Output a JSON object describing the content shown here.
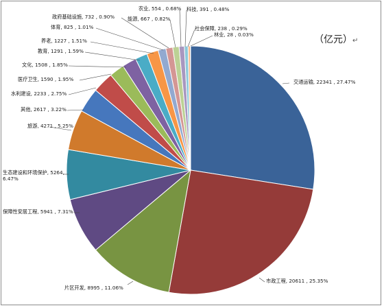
{
  "unit_label": "（亿元）",
  "unit_mark": "↵",
  "chart_data": {
    "type": "pie",
    "title": "",
    "unit": "亿元",
    "legend": "none",
    "slices": [
      {
        "name": "交通运输",
        "value": 22341,
        "percent": "27.47%",
        "color": "#3a6398",
        "label": "交通运输, 22341 , 27.47%"
      },
      {
        "name": "市政工程",
        "value": 20611,
        "percent": "25.35%",
        "color": "#953b39",
        "label": "市政工程, 20611 , 25.35%"
      },
      {
        "name": "片区开发",
        "value": 8995,
        "percent": "11.06%",
        "color": "#789442",
        "label": "片区开发, 8995 , 11.06%"
      },
      {
        "name": "保障性安居工程",
        "value": 5941,
        "percent": "7.31%",
        "color": "#5f4a83",
        "label": "保障性安居工程, 5941 , 7.31%"
      },
      {
        "name": "生态建设和环境保护",
        "value": 5264,
        "percent": "6.47%",
        "color": "#338aa0",
        "label": "生态建设和环境保护, 5264,",
        "label2": "6.47%"
      },
      {
        "name": "旅游",
        "value": 4271,
        "percent": "5.25%",
        "color": "#d07a2c",
        "label": "旅游, 4271 , 5.25%"
      },
      {
        "name": "其他",
        "value": 2617,
        "percent": "3.22%",
        "color": "#4677bd",
        "label": "其他, 2617 , 3.22%"
      },
      {
        "name": "水利建设",
        "value": 2233,
        "percent": "2.75%",
        "color": "#c04c49",
        "label": "水利建设, 2233 , 2.75%"
      },
      {
        "name": "医疗卫生",
        "value": 1590,
        "percent": "1.95%",
        "color": "#9bbb5a",
        "label": "医疗卫生, 1590 , 1.95%"
      },
      {
        "name": "文化",
        "value": 1508,
        "percent": "1.85%",
        "color": "#7e62a2",
        "label": "文化, 1508 , 1.85%"
      },
      {
        "name": "教育",
        "value": 1291,
        "percent": "1.59%",
        "color": "#4aacc6",
        "label": "教育, 1291 , 1.59%"
      },
      {
        "name": "养老",
        "value": 1227,
        "percent": "1.51%",
        "color": "#f79646",
        "label": "养老, 1227 , 1.51%"
      },
      {
        "name": "体育",
        "value": 825,
        "percent": "1.01%",
        "color": "#92a9d0",
        "label": "体育, 825 , 1.01%"
      },
      {
        "name": "政府基础设施",
        "value": 732,
        "percent": "0.90%",
        "color": "#d49694",
        "label": "政府基础设施, 732 , 0.90%"
      },
      {
        "name": "能源",
        "value": 667,
        "percent": "0.82%",
        "color": "#bcd195",
        "label": "能源, 667 , 0.82%"
      },
      {
        "name": "农业",
        "value": 554,
        "percent": "0.68%",
        "color": "#a897c0",
        "label": "农业, 554 , 0.68%"
      },
      {
        "name": "科技",
        "value": 391,
        "percent": "0.48%",
        "color": "#8cc9db",
        "label": "科技, 391 , 0.48%"
      },
      {
        "name": "社会保障",
        "value": 238,
        "percent": "0.29%",
        "color": "#f9b788",
        "label": "社会保障, 238 , 0.29%"
      },
      {
        "name": "林业",
        "value": 28,
        "percent": "0.03%",
        "color": "#2c4e78",
        "label": "林业, 28 , 0.03%"
      }
    ]
  }
}
